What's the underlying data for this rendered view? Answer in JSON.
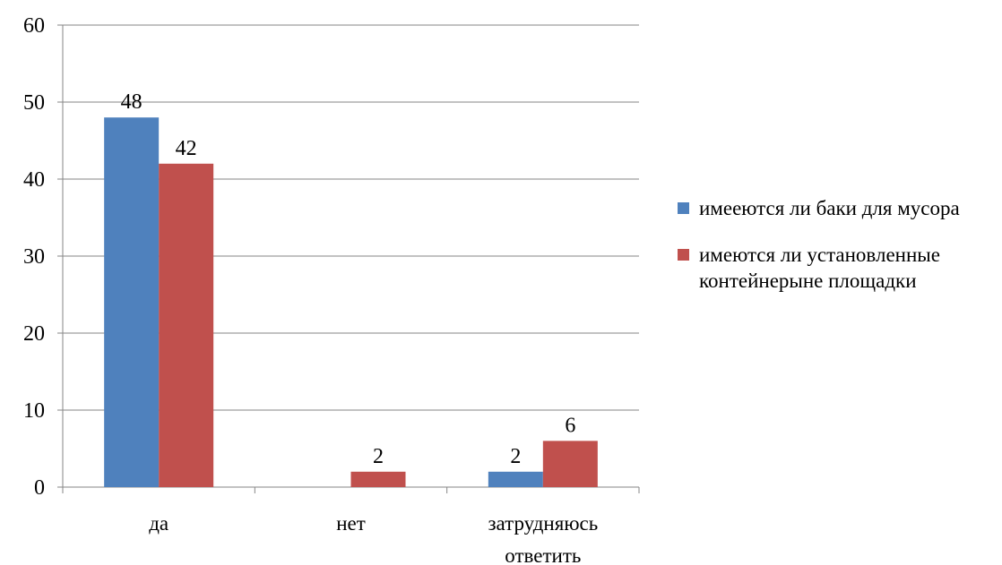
{
  "chart_data": {
    "type": "bar",
    "categories": [
      "да",
      "нет",
      "затрудняюсь ответить"
    ],
    "series": [
      {
        "name": "имееются ли баки для мусора",
        "values": [
          48,
          null,
          2
        ],
        "color": "#4F81BD"
      },
      {
        "name": "имеются ли установленные контейнерыне площадки",
        "values": [
          42,
          2,
          6
        ],
        "color": "#C0504D"
      }
    ],
    "data_labels": [
      [
        "48",
        "",
        "2"
      ],
      [
        "42",
        "2",
        "6"
      ]
    ],
    "category_labels": [
      [
        "да"
      ],
      [
        "нет"
      ],
      [
        "затрудняюсь",
        "ответить"
      ]
    ],
    "ylim": [
      0,
      60
    ],
    "yticks": [
      0,
      10,
      20,
      30,
      40,
      50,
      60
    ],
    "grid": true,
    "legend_position": "right"
  }
}
